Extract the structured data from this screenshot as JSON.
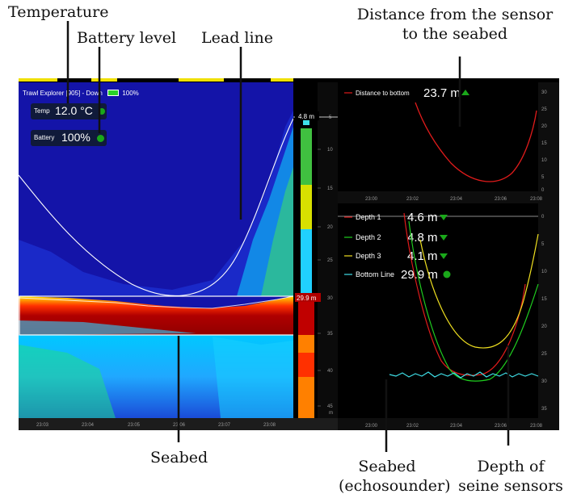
{
  "annotations": {
    "temperature": "Temperature",
    "battery_level": "Battery level",
    "lead_line": "Lead line",
    "distance_line1": "Distance from the sensor",
    "distance_line2": "to the seabed",
    "seabed": "Seabed",
    "seabed_echo_line1": "Seabed",
    "seabed_echo_line2": "(echosounder)",
    "seine_line1": "Depth of",
    "seine_line2": "seine sensors"
  },
  "echogram": {
    "header": "Trawl Explorer [905] - Down",
    "battery_header_value": "100%",
    "temp_label": "Temp",
    "temp_value": "12.0 °C",
    "battery_label": "Battery",
    "battery_value": "100%",
    "depth_marker_top": "4.8 m",
    "depth_marker_seabed": "29.9 m",
    "depth_ticks": [
      "5",
      "10",
      "15",
      "20",
      "25",
      "30",
      "35",
      "40",
      "45"
    ],
    "depth_unit": "m",
    "time_ticks": [
      "23:03",
      "23:04",
      "23:05",
      "23:06",
      "23:07",
      "23:08"
    ],
    "palette": {
      "deep_blue": "#1414a8",
      "seabed_red": "#b00000",
      "marker_yellow": "#f0e000"
    }
  },
  "distance_panel": {
    "label": "Distance to bottom",
    "value": "23.7 m",
    "color": "#e01b1b",
    "y_ticks": [
      "30",
      "25",
      "20",
      "15",
      "10",
      "5",
      "0"
    ],
    "x_ticks": [
      "23:00",
      "23:02",
      "23:04",
      "23:06",
      "23:08"
    ]
  },
  "depth_panel": {
    "series": [
      {
        "name": "Depth 1",
        "value": "4.6 m",
        "color": "#e01b1b"
      },
      {
        "name": "Depth 2",
        "value": "4.8 m",
        "color": "#1fce1f"
      },
      {
        "name": "Depth 3",
        "value": "4.1 m",
        "color": "#f0e020"
      },
      {
        "name": "Bottom Line",
        "value": "29.9 m",
        "color": "#3fe0e8"
      }
    ],
    "y_ticks": [
      "0",
      "5",
      "10",
      "15",
      "20",
      "25",
      "30",
      "35"
    ],
    "x_ticks": [
      "23:00",
      "23:02",
      "23:04",
      "23:06",
      "23:08"
    ]
  }
}
